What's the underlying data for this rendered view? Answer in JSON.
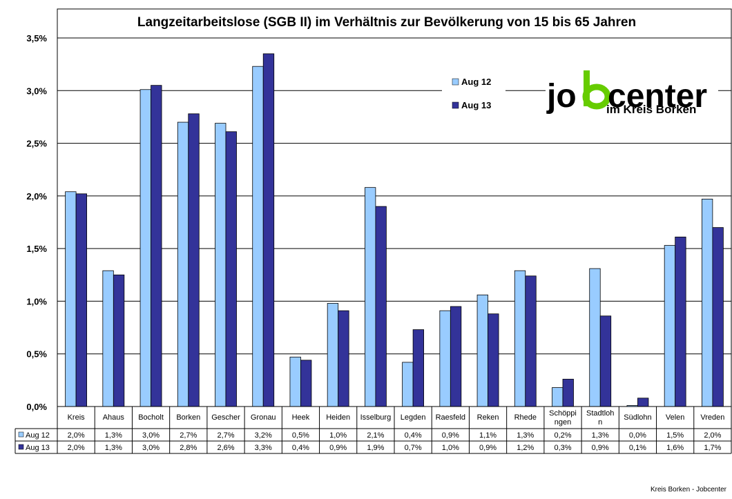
{
  "chart_data": {
    "type": "bar",
    "title": "Langzeitarbeitslose (SGB II) im Verhältnis zur Bevölkerung von 15 bis 65 Jahren",
    "categories": [
      "Kreis",
      "Ahaus",
      "Bocholt",
      "Borken",
      "Gescher",
      "Gronau",
      "Heek",
      "Heiden",
      "Isselburg",
      "Legden",
      "Raesfeld",
      "Reken",
      "Rhede",
      "Schöppi ngen",
      "Stadtloh n",
      "Südlohn",
      "Velen",
      "Vreden"
    ],
    "series": [
      {
        "name": "Aug 12",
        "color": "#99ccff",
        "values": [
          2.04,
          1.29,
          3.01,
          2.7,
          2.69,
          3.23,
          0.47,
          0.98,
          2.08,
          0.42,
          0.91,
          1.06,
          1.29,
          0.18,
          1.31,
          0.01,
          1.53,
          1.97
        ],
        "table": [
          "2,0%",
          "1,3%",
          "3,0%",
          "2,7%",
          "2,7%",
          "3,2%",
          "0,5%",
          "1,0%",
          "2,1%",
          "0,4%",
          "0,9%",
          "1,1%",
          "1,3%",
          "0,2%",
          "1,3%",
          "0,0%",
          "1,5%",
          "2,0%"
        ]
      },
      {
        "name": "Aug 13",
        "color": "#333399",
        "values": [
          2.02,
          1.25,
          3.05,
          2.78,
          2.61,
          3.35,
          0.44,
          0.91,
          1.9,
          0.73,
          0.95,
          0.88,
          1.24,
          0.26,
          0.86,
          0.08,
          1.61,
          1.7
        ],
        "table": [
          "2,0%",
          "1,3%",
          "3,0%",
          "2,8%",
          "2,6%",
          "3,3%",
          "0,4%",
          "0,9%",
          "1,9%",
          "0,7%",
          "1,0%",
          "0,9%",
          "1,2%",
          "0,3%",
          "0,9%",
          "0,1%",
          "1,6%",
          "1,7%"
        ]
      }
    ],
    "yticks": [
      "0,0%",
      "0,5%",
      "1,0%",
      "1,5%",
      "2,0%",
      "2,5%",
      "3,0%",
      "3,5%"
    ],
    "ylim": [
      0,
      3.5
    ],
    "grid": true,
    "legend_placement": "top-right",
    "xlabel": "",
    "ylabel": ""
  },
  "logo": {
    "text_left": "jo",
    "text_right": "center",
    "subtitle": "im Kreis Borken",
    "accent_color": "#66cc00"
  },
  "footer": {
    "source": "Kreis Borken - Jobcenter"
  }
}
